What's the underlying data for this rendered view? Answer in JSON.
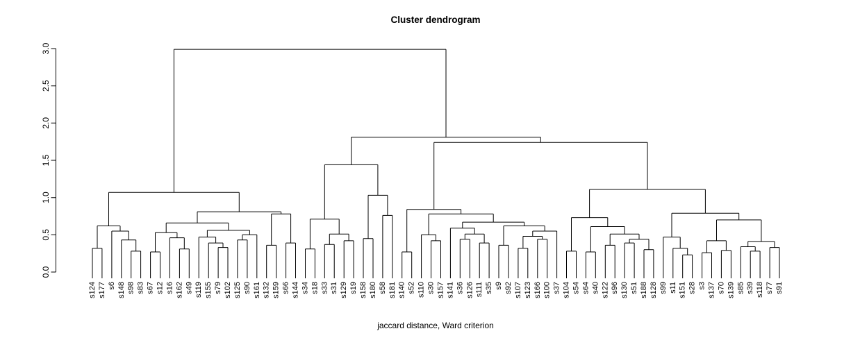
{
  "chart_data": {
    "type": "dendrogram",
    "title": "Cluster dendrogram",
    "xlabel": "jaccard distance, Ward criterion",
    "ylabel": "",
    "ylim": [
      0,
      3
    ],
    "ytick_labels": [
      "0.0",
      "0.5",
      "1.0",
      "1.5",
      "2.0",
      "2.5",
      "3.0"
    ],
    "ytick_values": [
      0,
      0.5,
      1.0,
      1.5,
      2.0,
      2.5,
      3.0
    ],
    "grid": false,
    "legend": "none",
    "line_color": "#000000",
    "label_colors": {
      "red": "#FF0000",
      "cyan": "#00FFFF"
    },
    "leaves": [
      {
        "label": "s124",
        "color": "#00FFFF"
      },
      {
        "label": "s177",
        "color": "#00FFFF"
      },
      {
        "label": "s6",
        "color": "#FF0000"
      },
      {
        "label": "s148",
        "color": "#00FFFF"
      },
      {
        "label": "s98",
        "color": "#FF0000"
      },
      {
        "label": "s83",
        "color": "#FF0000"
      },
      {
        "label": "s67",
        "color": "#FF0000"
      },
      {
        "label": "s12",
        "color": "#00FFFF"
      },
      {
        "label": "s16",
        "color": "#FF0000"
      },
      {
        "label": "s162",
        "color": "#FF0000"
      },
      {
        "label": "s49",
        "color": "#00FFFF"
      },
      {
        "label": "s119",
        "color": "#00FFFF"
      },
      {
        "label": "s155",
        "color": "#FF0000"
      },
      {
        "label": "s79",
        "color": "#FF0000"
      },
      {
        "label": "s102",
        "color": "#FF0000"
      },
      {
        "label": "s125",
        "color": "#00FFFF"
      },
      {
        "label": "s90",
        "color": "#FF0000"
      },
      {
        "label": "s161",
        "color": "#FF0000"
      },
      {
        "label": "s132",
        "color": "#FF0000"
      },
      {
        "label": "s159",
        "color": "#00FFFF"
      },
      {
        "label": "s66",
        "color": "#00FFFF"
      },
      {
        "label": "s144",
        "color": "#FF0000"
      },
      {
        "label": "s34",
        "color": "#FF0000"
      },
      {
        "label": "s18",
        "color": "#FF0000"
      },
      {
        "label": "s33",
        "color": "#FF0000"
      },
      {
        "label": "s31",
        "color": "#FF0000"
      },
      {
        "label": "s129",
        "color": "#FF0000"
      },
      {
        "label": "s19",
        "color": "#FF0000"
      },
      {
        "label": "s158",
        "color": "#00FFFF"
      },
      {
        "label": "s180",
        "color": "#FF0000"
      },
      {
        "label": "s58",
        "color": "#FF0000"
      },
      {
        "label": "s181",
        "color": "#FF0000"
      },
      {
        "label": "s140",
        "color": "#00FFFF"
      },
      {
        "label": "s52",
        "color": "#00FFFF"
      },
      {
        "label": "s110",
        "color": "#00FFFF"
      },
      {
        "label": "s30",
        "color": "#00FFFF"
      },
      {
        "label": "s157",
        "color": "#00FFFF"
      },
      {
        "label": "s141",
        "color": "#00FFFF"
      },
      {
        "label": "s36",
        "color": "#00FFFF"
      },
      {
        "label": "s126",
        "color": "#FF0000"
      },
      {
        "label": "s111",
        "color": "#00FFFF"
      },
      {
        "label": "s35",
        "color": "#FF0000"
      },
      {
        "label": "s9",
        "color": "#00FFFF"
      },
      {
        "label": "s92",
        "color": "#00FFFF"
      },
      {
        "label": "s107",
        "color": "#00FFFF"
      },
      {
        "label": "s123",
        "color": "#00FFFF"
      },
      {
        "label": "s166",
        "color": "#FF0000"
      },
      {
        "label": "s100",
        "color": "#FF0000"
      },
      {
        "label": "s37",
        "color": "#FF0000"
      },
      {
        "label": "s104",
        "color": "#00FFFF"
      },
      {
        "label": "s54",
        "color": "#00FFFF"
      },
      {
        "label": "s64",
        "color": "#00FFFF"
      },
      {
        "label": "s40",
        "color": "#00FFFF"
      },
      {
        "label": "s122",
        "color": "#00FFFF"
      },
      {
        "label": "s96",
        "color": "#FF0000"
      },
      {
        "label": "s130",
        "color": "#00FFFF"
      },
      {
        "label": "s51",
        "color": "#FF0000"
      },
      {
        "label": "s188",
        "color": "#00FFFF"
      },
      {
        "label": "s128",
        "color": "#00FFFF"
      },
      {
        "label": "s99",
        "color": "#FF0000"
      },
      {
        "label": "s11",
        "color": "#FF0000"
      },
      {
        "label": "s151",
        "color": "#FF0000"
      },
      {
        "label": "s28",
        "color": "#FF0000"
      },
      {
        "label": "s3",
        "color": "#00FFFF"
      },
      {
        "label": "s137",
        "color": "#00FFFF"
      },
      {
        "label": "s70",
        "color": "#00FFFF"
      },
      {
        "label": "s139",
        "color": "#00FFFF"
      },
      {
        "label": "s85",
        "color": "#00FFFF"
      },
      {
        "label": "s39",
        "color": "#FF0000"
      },
      {
        "label": "s118",
        "color": "#00FFFF"
      },
      {
        "label": "s77",
        "color": "#FF0000"
      },
      {
        "label": "s91",
        "color": "#00FFFF"
      }
    ],
    "merges": [
      2.99,
      [
        1.07,
        [
          0.62,
          [
            0.32,
            0,
            1
          ],
          [
            0.55,
            2,
            [
              0.43,
              3,
              [
                0.28,
                4,
                5
              ]
            ]
          ]
        ],
        [
          0.81,
          [
            0.66,
            [
              0.53,
              [
                0.27,
                6,
                7
              ],
              [
                0.46,
                8,
                [
                  0.31,
                  9,
                  10
                ]
              ]
            ],
            [
              0.56,
              [
                0.47,
                11,
                [
                  0.39,
                  12,
                  [
                    0.33,
                    13,
                    14
                  ]
                ]
              ],
              [
                0.5,
                [
                  0.43,
                  15,
                  16
                ],
                17
              ]
            ]
          ],
          [
            0.78,
            [
              0.36,
              18,
              19
            ],
            [
              0.39,
              20,
              21
            ]
          ]
        ]
      ],
      [
        1.81,
        [
          1.44,
          [
            0.71,
            [
              0.31,
              22,
              23
            ],
            [
              0.51,
              [
                0.37,
                24,
                25
              ],
              [
                0.42,
                26,
                27
              ]
            ]
          ],
          [
            1.03,
            [
              0.45,
              28,
              29
            ],
            [
              0.76,
              30,
              31
            ]
          ]
        ],
        [
          1.74,
          [
            0.84,
            [
              0.27,
              32,
              33
            ],
            [
              0.78,
              [
                0.5,
                34,
                [
                  0.42,
                  35,
                  36
                ]
              ],
              [
                0.67,
                [
                  0.59,
                  37,
                  [
                    0.51,
                    [
                      0.44,
                      38,
                      39
                    ],
                    [
                      0.39,
                      40,
                      41
                    ]
                  ]
                ],
                [
                  0.62,
                  [
                    0.36,
                    42,
                    43
                  ],
                  [
                    0.55,
                    [
                      0.48,
                      [
                        0.32,
                        44,
                        45
                      ],
                      [
                        0.44,
                        46,
                        47
                      ]
                    ],
                    48
                  ]
                ]
              ]
            ]
          ],
          [
            1.11,
            [
              0.73,
              [
                0.28,
                49,
                50
              ],
              [
                0.61,
                [
                  0.27,
                  51,
                  52
                ],
                [
                  0.51,
                  [
                    0.36,
                    53,
                    54
                  ],
                  [
                    0.44,
                    [
                      0.39,
                      55,
                      56
                    ],
                    [
                      0.3,
                      57,
                      58
                    ]
                  ]
                ]
              ]
            ],
            [
              0.79,
              [
                0.47,
                59,
                [
                  0.32,
                  60,
                  [
                    0.23,
                    61,
                    62
                  ]
                ]
              ],
              [
                0.7,
                [
                  0.42,
                  [
                    0.26,
                    63,
                    64
                  ],
                  [
                    0.29,
                    65,
                    66
                  ]
                ],
                [
                  0.41,
                  [
                    0.34,
                    67,
                    [
                      0.28,
                      68,
                      69
                    ]
                  ],
                  [
                    0.33,
                    70,
                    71
                  ]
                ]
              ]
            ]
          ]
        ]
      ]
    ]
  }
}
